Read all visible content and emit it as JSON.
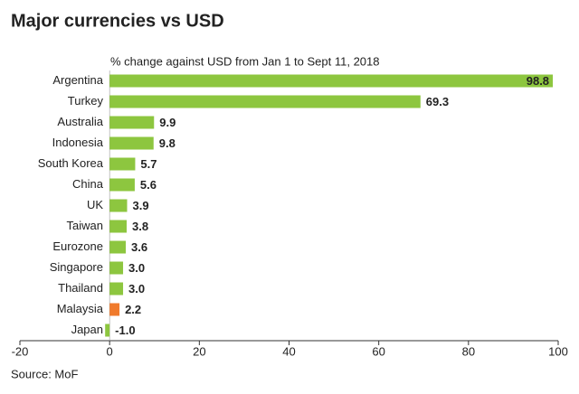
{
  "chart_data": {
    "type": "bar",
    "orientation": "horizontal",
    "title": "Major currencies vs USD",
    "subtitle": "% change against USD from Jan 1 to Sept 11, 2018",
    "source": "Source: MoF",
    "categories": [
      "Argentina",
      "Turkey",
      "Australia",
      "Indonesia",
      "South Korea",
      "China",
      "UK",
      "Taiwan",
      "Eurozone",
      "Singapore",
      "Thailand",
      "Malaysia",
      "Japan"
    ],
    "values": [
      98.8,
      69.3,
      9.9,
      9.8,
      5.7,
      5.6,
      3.9,
      3.8,
      3.6,
      3.0,
      3.0,
      2.2,
      -1.0
    ],
    "value_labels": [
      "98.8",
      "69.3",
      "9.9",
      "9.8",
      "5.7",
      "5.6",
      "3.9",
      "3.8",
      "3.6",
      "3.0",
      "3.0",
      "2.2",
      "-1.0"
    ],
    "colors": [
      "#8dc63f",
      "#8dc63f",
      "#8dc63f",
      "#8dc63f",
      "#8dc63f",
      "#8dc63f",
      "#8dc63f",
      "#8dc63f",
      "#8dc63f",
      "#8dc63f",
      "#8dc63f",
      "#f07a2c",
      "#8dc63f"
    ],
    "xlim": [
      -20,
      100
    ],
    "xticks": [
      -20,
      0,
      20,
      40,
      60,
      80,
      100
    ]
  }
}
